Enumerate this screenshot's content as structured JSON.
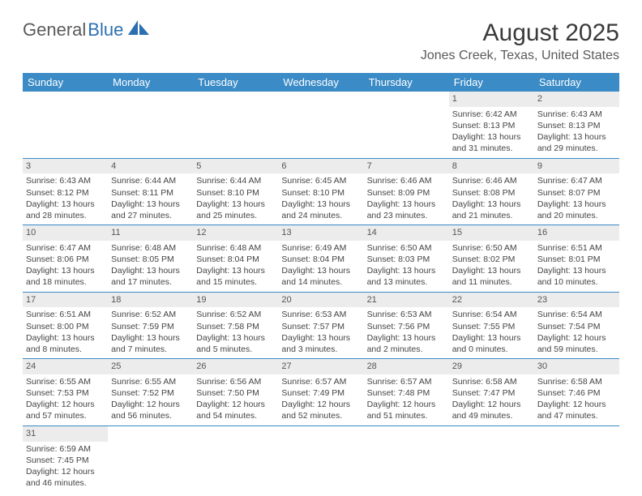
{
  "logo": {
    "textA": "General",
    "textB": "Blue"
  },
  "title": "August 2025",
  "location": "Jones Creek, Texas, United States",
  "colors": {
    "header_bg": "#3b8bc6",
    "header_text": "#ffffff",
    "daynum_bg": "#ececec",
    "body_text": "#444444",
    "logo_gray": "#5a5a5a",
    "logo_blue": "#2b6fb0",
    "row_border": "#3b8bc6"
  },
  "typography": {
    "title_fontsize": 30,
    "location_fontsize": 16,
    "dayhead_fontsize": 13,
    "cell_fontsize": 10.5,
    "daynum_fontsize": 11
  },
  "day_headers": [
    "Sunday",
    "Monday",
    "Tuesday",
    "Wednesday",
    "Thursday",
    "Friday",
    "Saturday"
  ],
  "weeks": [
    [
      {
        "blank": true
      },
      {
        "blank": true
      },
      {
        "blank": true
      },
      {
        "blank": true
      },
      {
        "blank": true
      },
      {
        "day": "1",
        "sunrise": "Sunrise: 6:42 AM",
        "sunset": "Sunset: 8:13 PM",
        "daylight": "Daylight: 13 hours and 31 minutes."
      },
      {
        "day": "2",
        "sunrise": "Sunrise: 6:43 AM",
        "sunset": "Sunset: 8:13 PM",
        "daylight": "Daylight: 13 hours and 29 minutes."
      }
    ],
    [
      {
        "day": "3",
        "sunrise": "Sunrise: 6:43 AM",
        "sunset": "Sunset: 8:12 PM",
        "daylight": "Daylight: 13 hours and 28 minutes."
      },
      {
        "day": "4",
        "sunrise": "Sunrise: 6:44 AM",
        "sunset": "Sunset: 8:11 PM",
        "daylight": "Daylight: 13 hours and 27 minutes."
      },
      {
        "day": "5",
        "sunrise": "Sunrise: 6:44 AM",
        "sunset": "Sunset: 8:10 PM",
        "daylight": "Daylight: 13 hours and 25 minutes."
      },
      {
        "day": "6",
        "sunrise": "Sunrise: 6:45 AM",
        "sunset": "Sunset: 8:10 PM",
        "daylight": "Daylight: 13 hours and 24 minutes."
      },
      {
        "day": "7",
        "sunrise": "Sunrise: 6:46 AM",
        "sunset": "Sunset: 8:09 PM",
        "daylight": "Daylight: 13 hours and 23 minutes."
      },
      {
        "day": "8",
        "sunrise": "Sunrise: 6:46 AM",
        "sunset": "Sunset: 8:08 PM",
        "daylight": "Daylight: 13 hours and 21 minutes."
      },
      {
        "day": "9",
        "sunrise": "Sunrise: 6:47 AM",
        "sunset": "Sunset: 8:07 PM",
        "daylight": "Daylight: 13 hours and 20 minutes."
      }
    ],
    [
      {
        "day": "10",
        "sunrise": "Sunrise: 6:47 AM",
        "sunset": "Sunset: 8:06 PM",
        "daylight": "Daylight: 13 hours and 18 minutes."
      },
      {
        "day": "11",
        "sunrise": "Sunrise: 6:48 AM",
        "sunset": "Sunset: 8:05 PM",
        "daylight": "Daylight: 13 hours and 17 minutes."
      },
      {
        "day": "12",
        "sunrise": "Sunrise: 6:48 AM",
        "sunset": "Sunset: 8:04 PM",
        "daylight": "Daylight: 13 hours and 15 minutes."
      },
      {
        "day": "13",
        "sunrise": "Sunrise: 6:49 AM",
        "sunset": "Sunset: 8:04 PM",
        "daylight": "Daylight: 13 hours and 14 minutes."
      },
      {
        "day": "14",
        "sunrise": "Sunrise: 6:50 AM",
        "sunset": "Sunset: 8:03 PM",
        "daylight": "Daylight: 13 hours and 13 minutes."
      },
      {
        "day": "15",
        "sunrise": "Sunrise: 6:50 AM",
        "sunset": "Sunset: 8:02 PM",
        "daylight": "Daylight: 13 hours and 11 minutes."
      },
      {
        "day": "16",
        "sunrise": "Sunrise: 6:51 AM",
        "sunset": "Sunset: 8:01 PM",
        "daylight": "Daylight: 13 hours and 10 minutes."
      }
    ],
    [
      {
        "day": "17",
        "sunrise": "Sunrise: 6:51 AM",
        "sunset": "Sunset: 8:00 PM",
        "daylight": "Daylight: 13 hours and 8 minutes."
      },
      {
        "day": "18",
        "sunrise": "Sunrise: 6:52 AM",
        "sunset": "Sunset: 7:59 PM",
        "daylight": "Daylight: 13 hours and 7 minutes."
      },
      {
        "day": "19",
        "sunrise": "Sunrise: 6:52 AM",
        "sunset": "Sunset: 7:58 PM",
        "daylight": "Daylight: 13 hours and 5 minutes."
      },
      {
        "day": "20",
        "sunrise": "Sunrise: 6:53 AM",
        "sunset": "Sunset: 7:57 PM",
        "daylight": "Daylight: 13 hours and 3 minutes."
      },
      {
        "day": "21",
        "sunrise": "Sunrise: 6:53 AM",
        "sunset": "Sunset: 7:56 PM",
        "daylight": "Daylight: 13 hours and 2 minutes."
      },
      {
        "day": "22",
        "sunrise": "Sunrise: 6:54 AM",
        "sunset": "Sunset: 7:55 PM",
        "daylight": "Daylight: 13 hours and 0 minutes."
      },
      {
        "day": "23",
        "sunrise": "Sunrise: 6:54 AM",
        "sunset": "Sunset: 7:54 PM",
        "daylight": "Daylight: 12 hours and 59 minutes."
      }
    ],
    [
      {
        "day": "24",
        "sunrise": "Sunrise: 6:55 AM",
        "sunset": "Sunset: 7:53 PM",
        "daylight": "Daylight: 12 hours and 57 minutes."
      },
      {
        "day": "25",
        "sunrise": "Sunrise: 6:55 AM",
        "sunset": "Sunset: 7:52 PM",
        "daylight": "Daylight: 12 hours and 56 minutes."
      },
      {
        "day": "26",
        "sunrise": "Sunrise: 6:56 AM",
        "sunset": "Sunset: 7:50 PM",
        "daylight": "Daylight: 12 hours and 54 minutes."
      },
      {
        "day": "27",
        "sunrise": "Sunrise: 6:57 AM",
        "sunset": "Sunset: 7:49 PM",
        "daylight": "Daylight: 12 hours and 52 minutes."
      },
      {
        "day": "28",
        "sunrise": "Sunrise: 6:57 AM",
        "sunset": "Sunset: 7:48 PM",
        "daylight": "Daylight: 12 hours and 51 minutes."
      },
      {
        "day": "29",
        "sunrise": "Sunrise: 6:58 AM",
        "sunset": "Sunset: 7:47 PM",
        "daylight": "Daylight: 12 hours and 49 minutes."
      },
      {
        "day": "30",
        "sunrise": "Sunrise: 6:58 AM",
        "sunset": "Sunset: 7:46 PM",
        "daylight": "Daylight: 12 hours and 47 minutes."
      }
    ],
    [
      {
        "day": "31",
        "sunrise": "Sunrise: 6:59 AM",
        "sunset": "Sunset: 7:45 PM",
        "daylight": "Daylight: 12 hours and 46 minutes."
      },
      {
        "blank": true
      },
      {
        "blank": true
      },
      {
        "blank": true
      },
      {
        "blank": true
      },
      {
        "blank": true
      },
      {
        "blank": true
      }
    ]
  ]
}
